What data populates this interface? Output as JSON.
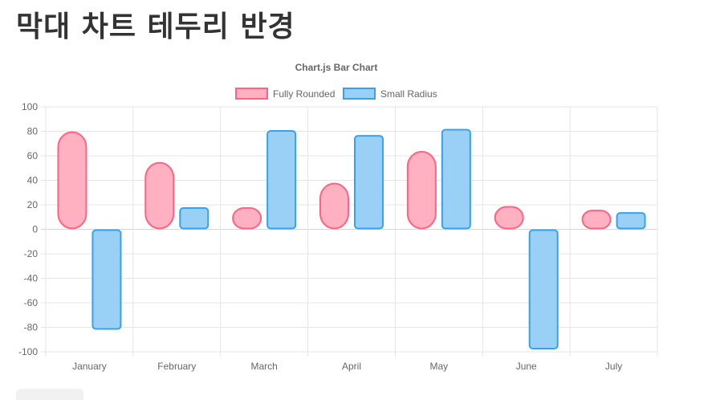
{
  "page": {
    "title": "막대 차트 테두리 반경"
  },
  "chart_data": {
    "type": "bar",
    "title": "Chart.js Bar Chart",
    "categories": [
      "January",
      "February",
      "March",
      "April",
      "May",
      "June",
      "July"
    ],
    "series": [
      {
        "name": "Fully Rounded",
        "values": [
          80,
          55,
          18,
          38,
          64,
          19,
          16
        ],
        "fill": "#ffb1c1",
        "stroke": "#ff6384",
        "rounding": "full"
      },
      {
        "name": "Small Radius",
        "values": [
          -82,
          18,
          81,
          77,
          82,
          -98,
          14
        ],
        "fill": "#9ad0f5",
        "stroke": "#36a2eb",
        "rounding": "small"
      }
    ],
    "ylim": [
      -100,
      100
    ],
    "yticks": [
      100,
      80,
      60,
      40,
      20,
      0,
      -20,
      -40,
      -60,
      -80,
      -100
    ],
    "grid": true,
    "legend_position": "top",
    "xlabel": "",
    "ylabel": ""
  }
}
